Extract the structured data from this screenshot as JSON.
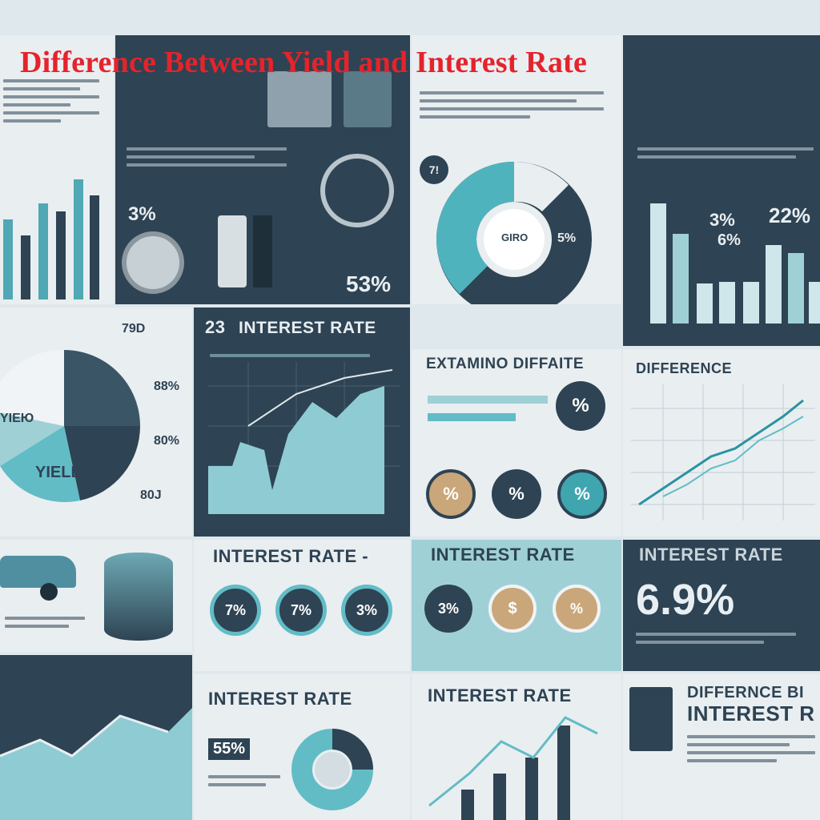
{
  "title": "Difference Between Yield and Interest Rate",
  "panels": {
    "p_yield_pie": {
      "label_small": "YIEЮ",
      "label_big": "YIELD",
      "v1": "88%",
      "v2": "80%",
      "v3": "80J",
      "v4": "79D"
    },
    "p_stats_top": {
      "v1": "3%",
      "v2": "53%"
    },
    "p_donut_top": {
      "v1": "7!",
      "v2": "5%",
      "v3": "GIRO"
    },
    "p_right_top": {
      "v1": "3%",
      "v2": "22%",
      "v3": "6%"
    },
    "p_interest_chart": {
      "title": "INTEREST RATE",
      "prefix": "23"
    },
    "p_extamino": {
      "title": "EXTAMINO DIFFAITE",
      "c1": "%",
      "c2": "%",
      "c3": "%",
      "c4": "%"
    },
    "p_difference_chart": {
      "title": "DIFFERENCE"
    },
    "p_interest_circles": {
      "title": "INTEREST RATE -",
      "c1": "7%",
      "c2": "7%",
      "c3": "3%"
    },
    "p_interest_teal": {
      "title": "INTEREST RATE",
      "c1": "3%",
      "c2": "$",
      "c3": "%"
    },
    "p_interest_big": {
      "title": "INTEREST RATE",
      "big": "6.9%"
    },
    "p_interest_bottom": {
      "title": "INTEREST RATE",
      "v1": "55%"
    },
    "p_interest_bottom2": {
      "title": "INTEREST RATE"
    },
    "p_diff_bottom": {
      "line1": "DIFFERNCE BI",
      "line2": "INTEREST R"
    }
  },
  "colors": {
    "navy": "#2e4353",
    "teal": "#62bcc6",
    "light": "#e9eef1",
    "red": "#e5232b",
    "gold": "#c9a77a"
  }
}
